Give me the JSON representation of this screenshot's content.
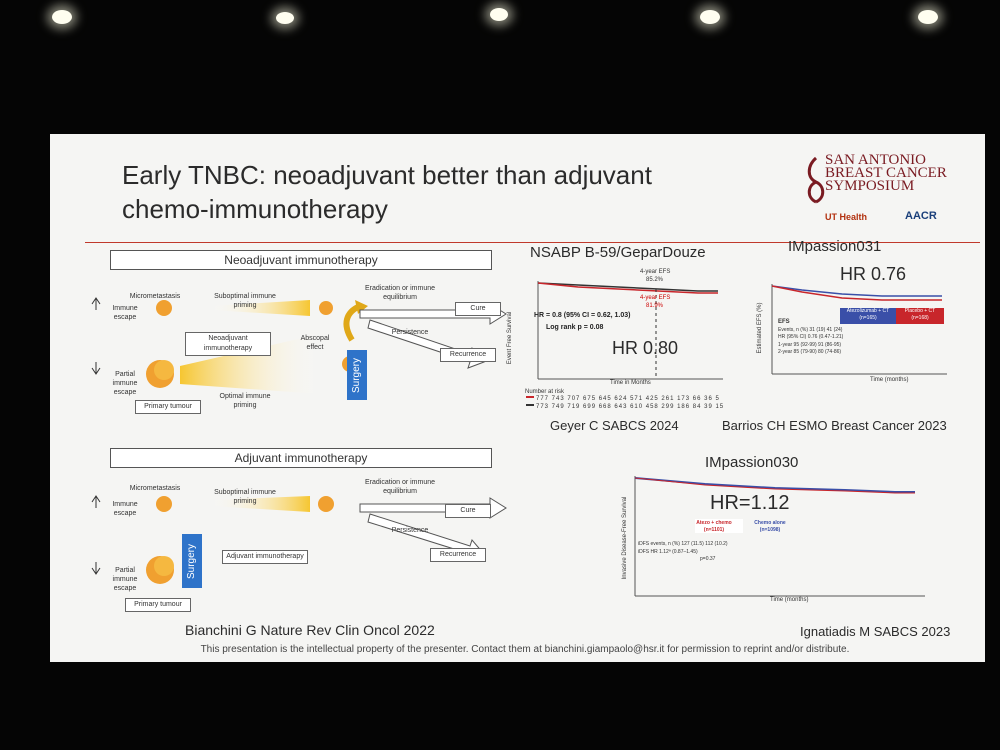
{
  "slide": {
    "title_line1": "Early TNBC: neoadjuvant better than adjuvant",
    "title_line2": "chemo-immunotherapy",
    "logo": {
      "line1": "SAN ANTONIO",
      "line2": "BREAST CANCER",
      "line3": "SYMPOSIUM",
      "ut": "UT Health",
      "aacr": "AACR"
    },
    "footer": "This presentation is the intellectual property of the presenter. Contact them at bianchini.giampaolo@hsr.it for permission to reprint and/or distribute."
  },
  "neoadjuvant_diagram": {
    "header": "Neoadjuvant immunotherapy",
    "micrometastasis": "Micrometastasis",
    "immune_escape": "Immune escape",
    "suboptimal": "Suboptimal immune priming",
    "eradication": "Eradication or immune equilibrium",
    "cure": "Cure",
    "persistence": "Persistence",
    "recurrence": "Recurrence",
    "center_box": "Neoadjuvant immunotherapy",
    "abscopal": "Abscopal effect",
    "surgery": "Surgery",
    "partial": "Partial immune escape",
    "optimal": "Optimal immune priming",
    "primary": "Primary tumour"
  },
  "adjuvant_diagram": {
    "header": "Adjuvant immunotherapy",
    "micrometastasis": "Micrometastasis",
    "immune_escape": "Immune escape",
    "suboptimal": "Suboptimal immune priming",
    "eradication": "Eradication or immune equilibrium",
    "cure": "Cure",
    "persistence": "Persistence",
    "recurrence": "Recurrence",
    "center_box": "Adjuvant immunotherapy",
    "surgery": "Surgery",
    "partial": "Partial immune escape",
    "primary": "Primary tumour"
  },
  "references": {
    "bianchini": "Bianchini G Nature Rev Clin Oncol 2022",
    "geyer": "Geyer C SABCS 2024",
    "barrios": "Barrios CH ESMO Breast Cancer 2023",
    "ignatiadis": "Ignatiadis M SABCS 2023"
  },
  "nsabp": {
    "title": "NSABP B-59/GeparDouze",
    "efs1_label": "4-year EFS",
    "efs1_value": "85.2%",
    "efs2_label": "4-year EFS",
    "efs2_value": "81.9%",
    "hr_text": "HR = 0.8 (95% CI = 0.62, 1.03)",
    "logrank": "Log rank p = 0.08",
    "hr_big": "HR 0.80",
    "number_at_risk": "Number at risk",
    "risk_row1": "777 743 707 675 645 624 571 425 261 173 66 36 5",
    "risk_row2": "773 749 719 699 668 643 610 458 299 186 84 39 15",
    "xlabel": "Time in Months",
    "ylabel": "Event Free Survival"
  },
  "impassion031": {
    "title": "IMpassion031",
    "hr_big": "HR 0.76",
    "col1": "Atezolizumab + CT (n=165)",
    "col2": "Placebo + CT (n=168)",
    "row1": "Events, n (%)      31 (19)      41 (24)",
    "row2": "HR (95% CI)        0.76 (0.47-1.21)",
    "row3": "1-year   95 (92-99)   91 (86-95)",
    "row4": "2-year   85 (79-90)   80 (74-86)",
    "efs": "EFS",
    "xlabel": "Time (months)",
    "ylabel": "Estimated EFS (%)"
  },
  "impassion030": {
    "title": "IMpassion030",
    "hr_big": "HR=1.12",
    "col1": "Atezo + chemo (n=1101)",
    "col2": "Chemo alone (n=1098)",
    "row1": "iDFS events, n (%)   127 (11.5)   112 (10.2)",
    "row2": "iDFS HR   1.12ª (0.87–1.45)",
    "row3": "p=0.37",
    "xlabel": "Time (months)",
    "ylabel": "Invasive Disease-Free Survival"
  },
  "colors": {
    "red_series": "#c8262b",
    "blue_series": "#3a4fa8",
    "surgery_blue": "#2e73c9",
    "title_rule": "#c0392b"
  }
}
